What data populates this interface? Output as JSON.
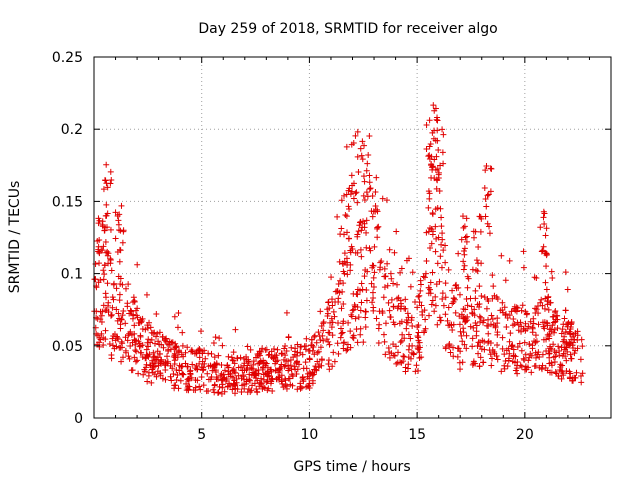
{
  "chart_data": {
    "type": "scatter",
    "title": "Day 259 of 2018, SRMTID for receiver algo",
    "xlabel": "GPS time / hours",
    "ylabel": "SRMTID / TECUs",
    "xlim": [
      0,
      24
    ],
    "ylim": [
      0,
      0.25
    ],
    "xticks": [
      0,
      5,
      10,
      15,
      20
    ],
    "xtick_labels": [
      "0",
      "5",
      "10",
      "15",
      "20"
    ],
    "yticks": [
      0,
      0.05,
      0.1,
      0.15,
      0.2,
      0.25
    ],
    "ytick_labels": [
      "0",
      "0.05",
      "0.1",
      "0.15",
      "0.2",
      "0.25"
    ],
    "grid": true,
    "marker": "+",
    "marker_color": "#e00000",
    "series": [
      {
        "name": "SRMTID",
        "trend": [
          [
            0.0,
            0.07
          ],
          [
            0.3,
            0.09
          ],
          [
            0.6,
            0.08
          ],
          [
            1.0,
            0.07
          ],
          [
            1.5,
            0.065
          ],
          [
            2.0,
            0.055
          ],
          [
            2.5,
            0.045
          ],
          [
            3.0,
            0.04
          ],
          [
            4.0,
            0.035
          ],
          [
            5.0,
            0.033
          ],
          [
            6.0,
            0.03
          ],
          [
            7.0,
            0.03
          ],
          [
            8.0,
            0.033
          ],
          [
            9.0,
            0.035
          ],
          [
            10.0,
            0.037
          ],
          [
            10.5,
            0.045
          ],
          [
            11.0,
            0.06
          ],
          [
            11.5,
            0.08
          ],
          [
            12.0,
            0.09
          ],
          [
            12.5,
            0.095
          ],
          [
            13.0,
            0.1
          ],
          [
            13.5,
            0.08
          ],
          [
            14.0,
            0.065
          ],
          [
            14.5,
            0.055
          ],
          [
            15.0,
            0.055
          ],
          [
            15.5,
            0.1
          ],
          [
            15.8,
            0.13
          ],
          [
            16.2,
            0.09
          ],
          [
            16.5,
            0.07
          ],
          [
            17.0,
            0.06
          ],
          [
            17.5,
            0.065
          ],
          [
            18.0,
            0.06
          ],
          [
            18.5,
            0.06
          ],
          [
            19.0,
            0.055
          ],
          [
            19.5,
            0.055
          ],
          [
            20.0,
            0.055
          ],
          [
            20.5,
            0.055
          ],
          [
            21.0,
            0.06
          ],
          [
            21.5,
            0.05
          ],
          [
            22.0,
            0.045
          ],
          [
            22.7,
            0.04
          ]
        ],
        "peaks": [
          [
            0.4,
            0.15
          ],
          [
            0.6,
            0.18
          ],
          [
            1.2,
            0.15
          ],
          [
            11.7,
            0.16
          ],
          [
            12.1,
            0.2
          ],
          [
            12.6,
            0.2
          ],
          [
            13.0,
            0.17
          ],
          [
            15.6,
            0.21
          ],
          [
            15.8,
            0.228
          ],
          [
            16.0,
            0.2
          ],
          [
            17.1,
            0.14
          ],
          [
            17.8,
            0.14
          ],
          [
            18.3,
            0.175
          ],
          [
            20.9,
            0.145
          ],
          [
            22.0,
            0.07
          ]
        ]
      }
    ]
  }
}
